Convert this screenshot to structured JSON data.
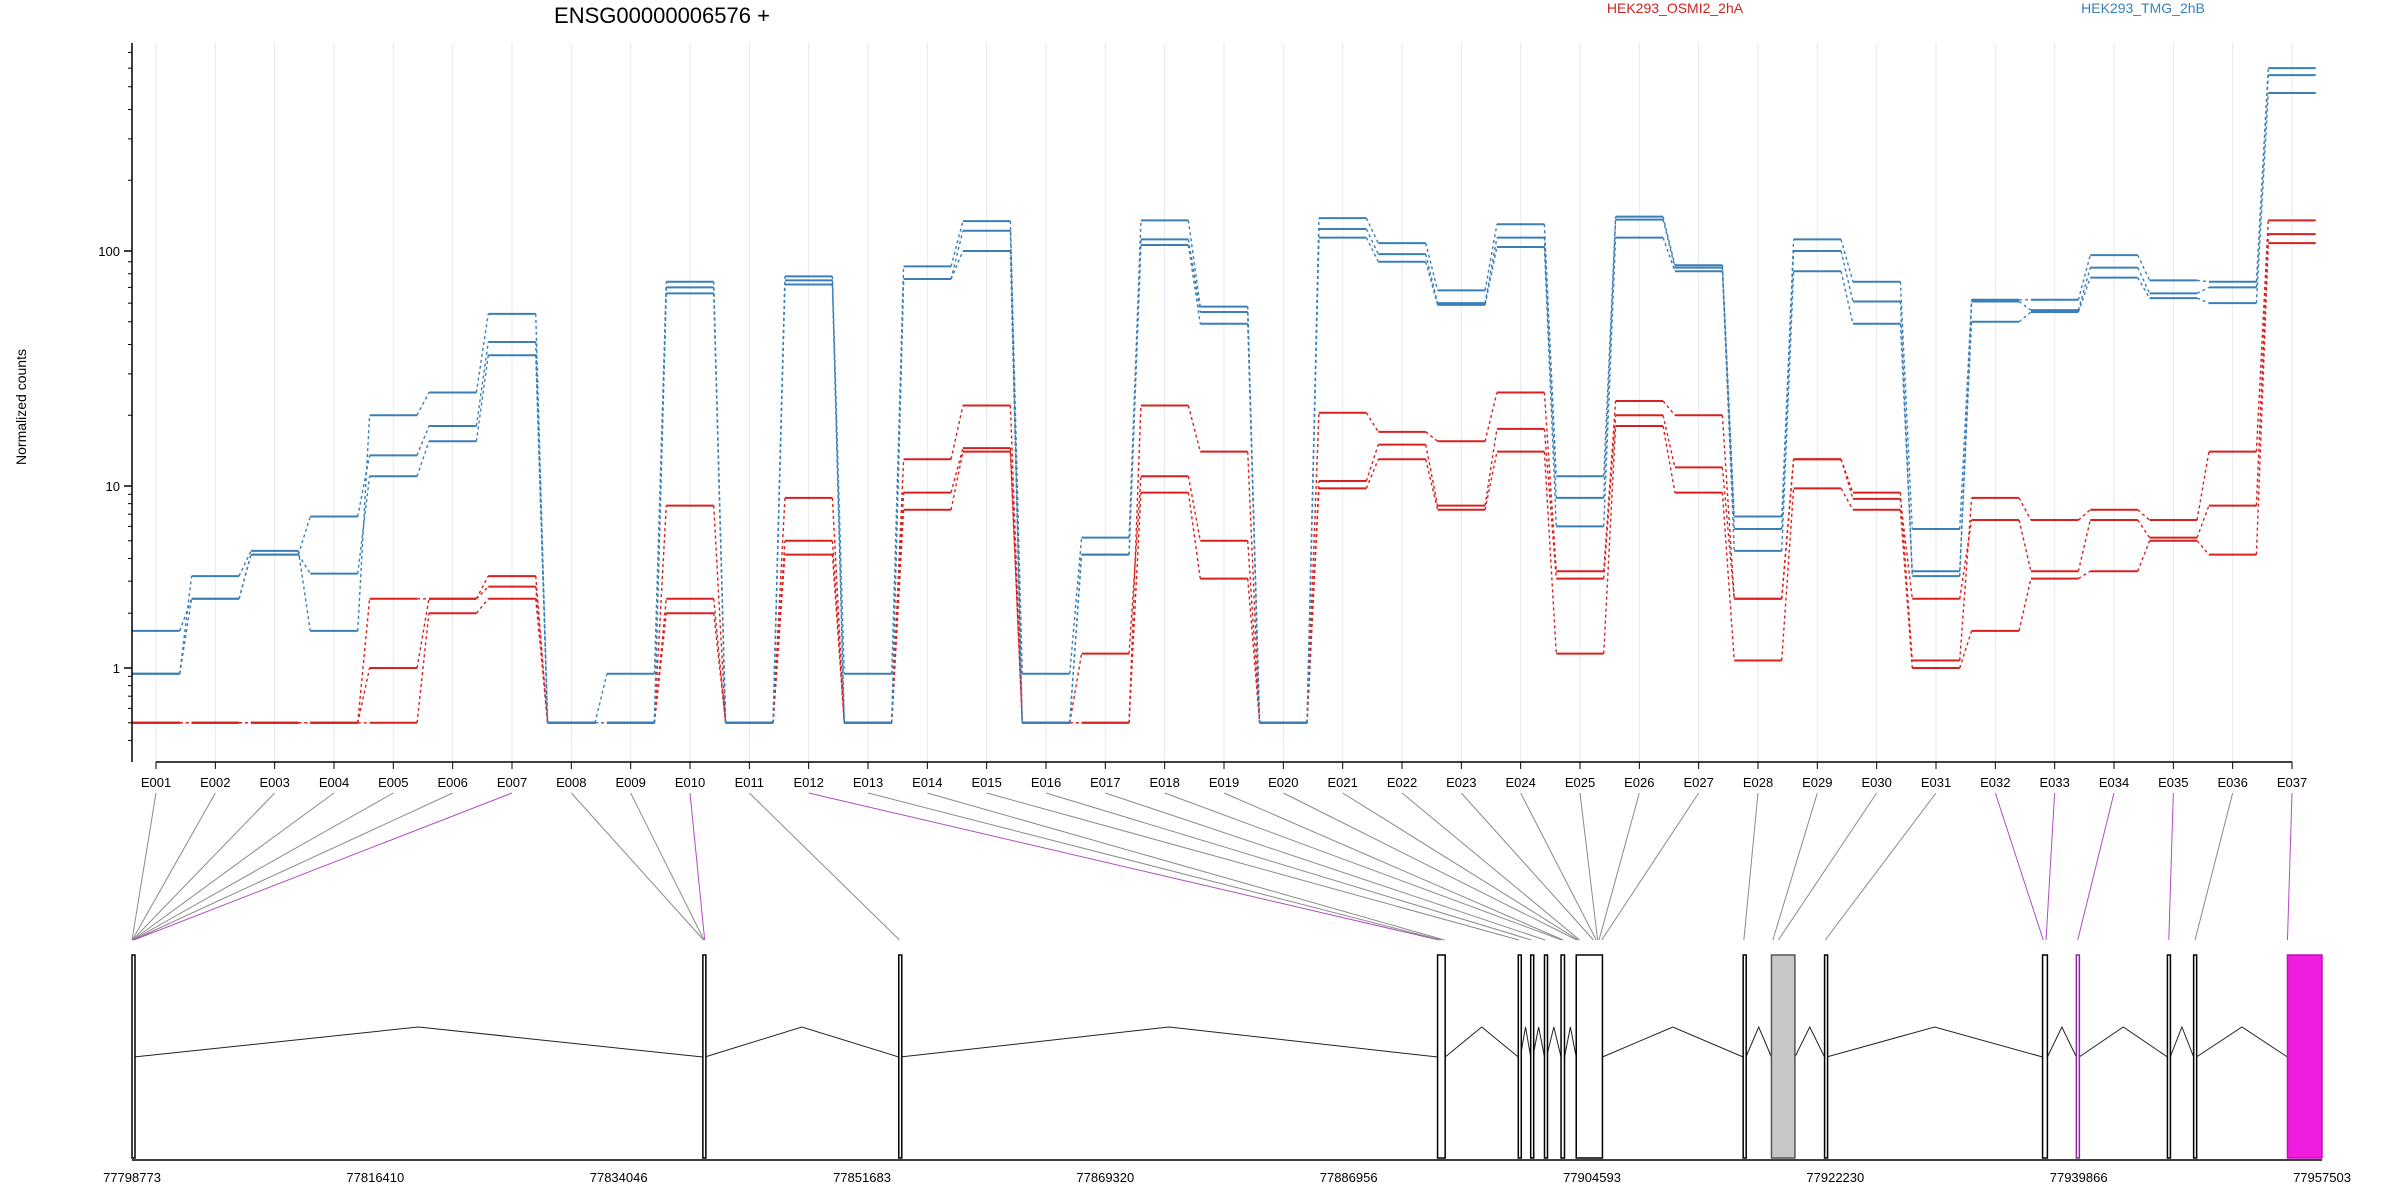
{
  "title": "ENSG00000006576 +",
  "legend": [
    {
      "name": "HEK293_OSMI2_2hA",
      "color": "#d6211f"
    },
    {
      "name": "HEK293_TMG_2hB",
      "color": "#3a7fb8"
    }
  ],
  "chart_data": {
    "type": "line",
    "title": "ENSG00000006576 +",
    "ylabel": "Normalized counts",
    "yscale": "log",
    "ylim": [
      0.35,
      900
    ],
    "yticks": [
      1,
      10,
      100
    ],
    "ytick_labels": [
      "1",
      "10",
      "100"
    ],
    "grid": "vertical",
    "legend_position": "top-right",
    "categories": [
      "E001",
      "E002",
      "E003",
      "E004",
      "E005",
      "E006",
      "E007",
      "E008",
      "E009",
      "E010",
      "E011",
      "E012",
      "E013",
      "E014",
      "E015",
      "E016",
      "E017",
      "E018",
      "E019",
      "E020",
      "E021",
      "E022",
      "E023",
      "E024",
      "E025",
      "E026",
      "E027",
      "E028",
      "E029",
      "E030",
      "E031",
      "E032",
      "E033",
      "E034",
      "E035",
      "E036",
      "E037"
    ],
    "series": [
      {
        "name": "HEK293_OSMI2_2hA",
        "color": "#d6211f",
        "values": [
          0.5,
          0.5,
          0.5,
          0.5,
          0.5,
          2,
          2.4,
          0.5,
          0.5,
          2,
          0.5,
          4.2,
          0.5,
          7.4,
          14,
          0.5,
          0.5,
          9.2,
          3.1,
          0.5,
          9.7,
          13,
          7.4,
          14,
          1.2,
          18,
          9.2,
          1.1,
          9.7,
          7.4,
          1,
          1.6,
          3.1,
          3.4,
          5,
          4.2,
          108
        ]
      },
      {
        "name": "HEK293_OSMI2_2hA",
        "color": "#d6211f",
        "values": [
          0.5,
          0.5,
          0.5,
          0.5,
          1,
          2.4,
          2.8,
          0.5,
          0.5,
          2.4,
          0.5,
          5,
          0.5,
          9.2,
          14.5,
          0.5,
          1.2,
          11,
          5,
          0.5,
          10.5,
          15,
          7.8,
          17.5,
          3.1,
          20,
          12,
          2.4,
          13,
          8.5,
          2.4,
          6.5,
          3.4,
          6.5,
          5.2,
          7.8,
          118
        ]
      },
      {
        "name": "HEK293_OSMI2_2hA",
        "color": "#d6211f",
        "values": [
          0.5,
          0.5,
          0.5,
          0.5,
          2.4,
          2.4,
          3.2,
          0.5,
          0.5,
          7.8,
          0.5,
          8.6,
          0.5,
          13,
          22,
          0.5,
          0.5,
          22,
          14,
          0.5,
          20.5,
          17,
          15.5,
          25,
          3.4,
          23,
          20,
          2.4,
          13,
          9.2,
          1.1,
          8.6,
          6.5,
          7.4,
          6.5,
          14,
          135
        ]
      },
      {
        "name": "HEK293_TMG_2hB",
        "color": "#3a7fb8",
        "values": [
          1.6,
          2.4,
          4.2,
          3.3,
          11,
          15.5,
          36,
          0.5,
          0.5,
          66,
          0.5,
          72,
          0.5,
          76,
          100,
          0.5,
          4.2,
          106,
          49,
          0.5,
          114,
          90,
          59,
          104,
          6,
          114,
          82,
          4.4,
          82,
          49,
          3.4,
          50,
          55,
          77,
          63,
          60,
          470
        ]
      },
      {
        "name": "HEK293_TMG_2hB",
        "color": "#3a7fb8",
        "values": [
          0.93,
          2.4,
          4.2,
          6.8,
          13.5,
          18,
          41,
          0.5,
          0.5,
          70,
          0.5,
          75,
          0.5,
          76,
          122,
          0.5,
          4.2,
          112,
          55,
          0.5,
          124,
          97,
          60,
          114,
          8.6,
          136,
          85,
          5.8,
          100,
          61,
          3.2,
          61,
          56,
          85,
          66,
          70,
          560
        ]
      },
      {
        "name": "HEK293_TMG_2hB",
        "color": "#3a7fb8",
        "values": [
          0.93,
          3.2,
          4.4,
          1.6,
          20,
          25,
          54,
          0.5,
          0.93,
          74,
          0.5,
          78,
          0.93,
          86,
          134,
          0.93,
          5.2,
          135,
          58,
          0.5,
          138,
          108,
          68,
          130,
          11,
          140,
          87,
          6.8,
          112,
          74,
          5.8,
          62,
          62,
          96,
          75,
          74,
          600
        ]
      }
    ],
    "exon_highlight": [
      "E007",
      "E010",
      "E012",
      "E032",
      "E033",
      "E034",
      "E035",
      "E037"
    ],
    "genomic_axis": {
      "ticks": [
        "77798773",
        "77816410",
        "77834046",
        "77851683",
        "77869320",
        "77886956",
        "77904593",
        "77922230",
        "77939866",
        "77957503"
      ],
      "range": [
        77798773,
        77957503
      ]
    }
  }
}
